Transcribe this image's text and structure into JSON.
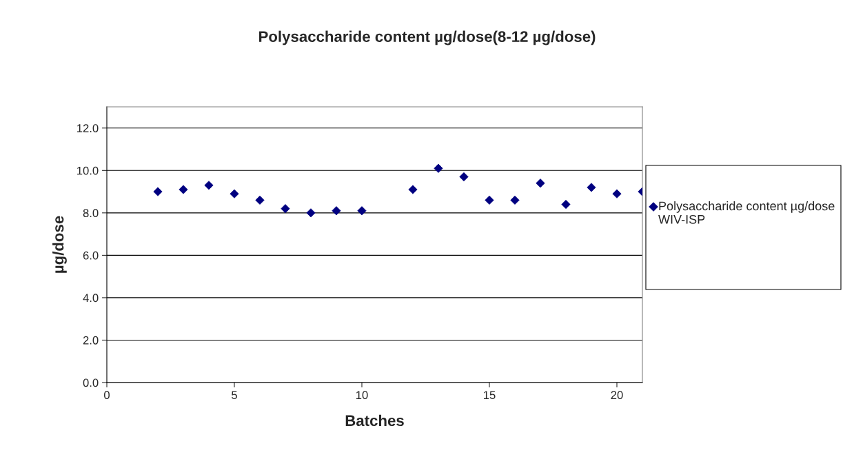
{
  "chart_data": {
    "type": "scatter",
    "title": "Polysaccharide content µg/dose(8-12 µg/dose)",
    "xlabel": "Batches",
    "ylabel": "µg/dose",
    "x": [
      2,
      3,
      4,
      5,
      6,
      7,
      8,
      9,
      10,
      12,
      13,
      14,
      15,
      16,
      17,
      18,
      19,
      20,
      21
    ],
    "series": [
      {
        "name": "Polysaccharide content µg/dose WIV-ISP",
        "color": "#000080",
        "values": [
          9.0,
          9.1,
          9.3,
          8.9,
          8.6,
          8.2,
          8.0,
          8.1,
          8.1,
          9.1,
          10.1,
          9.7,
          8.6,
          8.6,
          9.4,
          8.4,
          9.2,
          8.9,
          9.0
        ]
      }
    ],
    "xlim": [
      0,
      21
    ],
    "xticks": [
      0,
      5,
      10,
      15,
      20
    ],
    "ylim": [
      0,
      13
    ],
    "yticks": [
      {
        "value": 0,
        "label": "0.0"
      },
      {
        "value": 2,
        "label": "2.0"
      },
      {
        "value": 4,
        "label": "4.0"
      },
      {
        "value": 6,
        "label": "6.0"
      },
      {
        "value": 8,
        "label": "8.0"
      },
      {
        "value": 10,
        "label": "10.0"
      },
      {
        "value": 12,
        "label": "12.0"
      }
    ],
    "grid": "y",
    "legend": "right",
    "marker": "diamond"
  }
}
